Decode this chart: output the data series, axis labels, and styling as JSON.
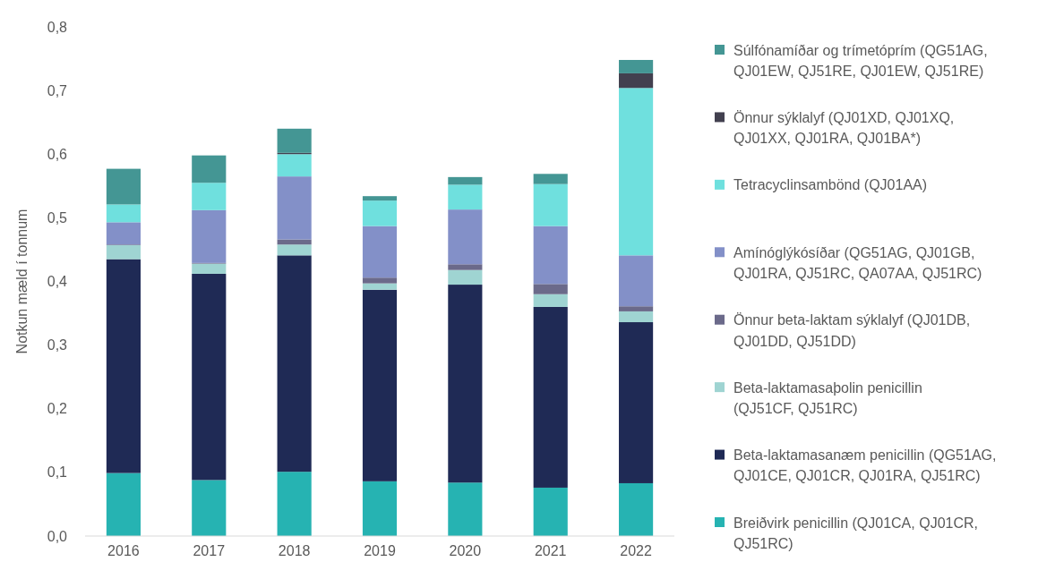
{
  "chart_data": {
    "type": "bar",
    "stacked": true,
    "ylabel": "Notkun mæld í tonnum",
    "categories": [
      "2016",
      "2017",
      "2018",
      "2019",
      "2020",
      "2021",
      "2022"
    ],
    "ylim": [
      0,
      0.8
    ],
    "yticks": [
      {
        "value": 0,
        "label": "0,0"
      },
      {
        "value": 0.1,
        "label": "0,1"
      },
      {
        "value": 0.2,
        "label": "0,2"
      },
      {
        "value": 0.3,
        "label": "0,3"
      },
      {
        "value": 0.4,
        "label": "0,4"
      },
      {
        "value": 0.5,
        "label": "0,5"
      },
      {
        "value": 0.6,
        "label": "0,6"
      },
      {
        "value": 0.7,
        "label": "0,7"
      },
      {
        "value": 0.8,
        "label": "0,8"
      }
    ],
    "grid": false,
    "legend": "right",
    "series": [
      {
        "name": "Breiðvirk penicillin (QJ01CA, QJ01CR, QJ51RC)",
        "color": "#26b3b2",
        "values": [
          0.099,
          0.088,
          0.101,
          0.086,
          0.084,
          0.076,
          0.083
        ]
      },
      {
        "name": "Beta-laktamasanæm penicillin (QG51AG, QJ01CE, QJ01CR, QJ01RA, QJ51RC)",
        "color": "#1f2a55",
        "values": [
          0.336,
          0.324,
          0.34,
          0.301,
          0.311,
          0.284,
          0.253
        ]
      },
      {
        "name": "Beta-laktamasaþolin penicillin (QJ51CF, QJ51RC)",
        "color": "#9fd4d2",
        "values": [
          0.022,
          0.016,
          0.017,
          0.01,
          0.023,
          0.02,
          0.017
        ]
      },
      {
        "name": "Önnur beta-laktam sýklalyf (QJ01DB, QJ01DD, QJ51DD)",
        "color": "#6b6a8a",
        "values": [
          0.001,
          0.001,
          0.008,
          0.009,
          0.009,
          0.016,
          0.008
        ]
      },
      {
        "name": "Amínóglýkósíðar (QG51AG, QJ01GB, QJ01RA, QJ51RC, QA07AA, QJ51RC)",
        "color": "#8390c8",
        "values": [
          0.035,
          0.083,
          0.099,
          0.081,
          0.086,
          0.091,
          0.08
        ]
      },
      {
        "name": "Tetracyclinsambönd (QJ01AA)",
        "color": "#6fe0de",
        "values": [
          0.028,
          0.043,
          0.035,
          0.04,
          0.039,
          0.066,
          0.263
        ]
      },
      {
        "name": "Önnur sýklalyf (QJ01XD, QJ01XQ, QJ01XX, QJ01RA, QJ01BA*)",
        "color": "#42404f",
        "values": [
          0,
          0,
          0.002,
          0,
          0,
          0,
          0.023
        ]
      },
      {
        "name": "Súlfónamíðar og trímetóprím (QG51AG, QJ01EW, QJ51RE, QJ01EW, QJ51RE)",
        "color": "#449694",
        "values": [
          0.056,
          0.043,
          0.038,
          0.007,
          0.012,
          0.016,
          0.021
        ]
      }
    ]
  }
}
